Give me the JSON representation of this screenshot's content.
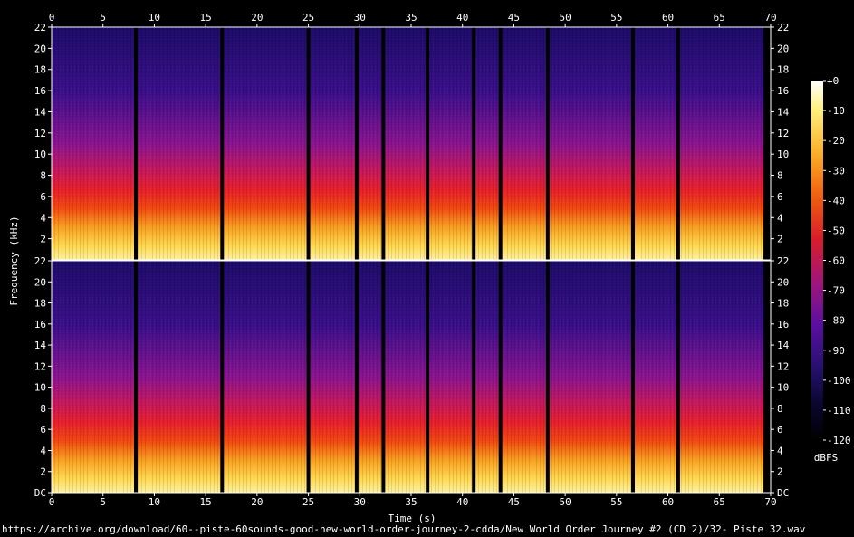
{
  "chart_data": {
    "type": "heatmap",
    "xlabel": "Time (s)",
    "ylabel": "Frequency (kHz)",
    "xlim": [
      0,
      70
    ],
    "x_ticks": [
      0,
      5,
      10,
      15,
      20,
      25,
      30,
      35,
      40,
      45,
      50,
      55,
      60,
      65,
      70
    ],
    "channels": [
      {
        "y_ticks": [
          "22",
          "20",
          "18",
          "16",
          "14",
          "12",
          "10",
          "8",
          "6",
          "4",
          "2"
        ]
      },
      {
        "y_ticks": [
          "22",
          "20",
          "18",
          "16",
          "14",
          "12",
          "10",
          "8",
          "6",
          "4",
          "2",
          "DC"
        ]
      }
    ],
    "ylim_khz": [
      0,
      22
    ],
    "colorbar": {
      "unit": "dBFS",
      "ticks": [
        "+0",
        "-10",
        "-20",
        "-30",
        "-40",
        "-50",
        "-60",
        "-70",
        "-80",
        "-90",
        "-100",
        "-110",
        "-120"
      ],
      "range": [
        -120,
        0
      ]
    },
    "silence_gaps_s": [
      8.2,
      16.6,
      25.0,
      29.7,
      32.3,
      36.6,
      41.1,
      43.7,
      48.3,
      56.6,
      61.0
    ],
    "track_end_s": 69.3,
    "colors": [
      "#000000",
      "#1a0a6e",
      "#5a0fa0",
      "#a0167a",
      "#d81d3a",
      "#f04a10",
      "#fa9a10",
      "#ffe060",
      "#ffffff"
    ]
  },
  "caption": "https://archive.org/download/60--piste-60sounds-good-new-world-order-journey-2-cdda/New World Order Journey #2 (CD 2)/32- Piste 32.wav"
}
